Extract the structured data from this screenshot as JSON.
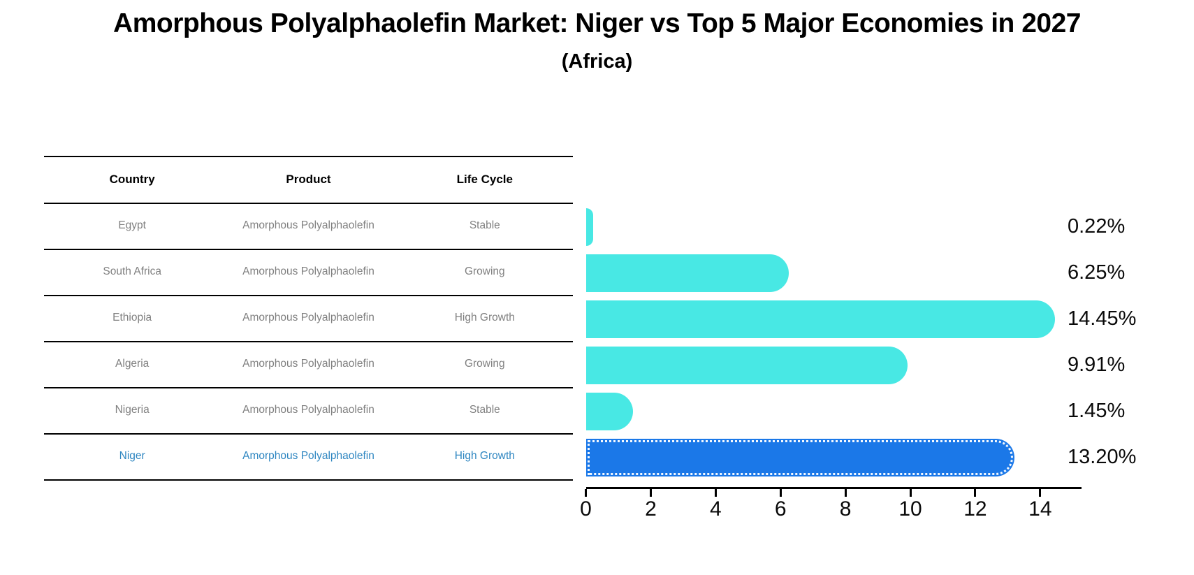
{
  "page": {
    "title": "Amorphous Polyalphaolefin Market: Niger vs Top 5 Major Economies in 2027",
    "subtitle": "(Africa)",
    "background_color": "#ffffff"
  },
  "table": {
    "headers": [
      "Country",
      "Product",
      "Life Cycle"
    ],
    "rows": [
      {
        "country": "Egypt",
        "product": "Amorphous Polyalphaolefin",
        "life_cycle": "Stable",
        "highlighted": false
      },
      {
        "country": "South Africa",
        "product": "Amorphous Polyalphaolefin",
        "life_cycle": "Growing",
        "highlighted": false
      },
      {
        "country": "Ethiopia",
        "product": "Amorphous Polyalphaolefin",
        "life_cycle": "High Growth",
        "highlighted": false
      },
      {
        "country": "Algeria",
        "product": "Amorphous Polyalphaolefin",
        "life_cycle": "Growing",
        "highlighted": false
      },
      {
        "country": "Nigeria",
        "product": "Amorphous Polyalphaolefin",
        "life_cycle": "Stable",
        "highlighted": false
      },
      {
        "country": "Niger",
        "product": "Amorphous Polyalphaolefin",
        "life_cycle": "High Growth",
        "highlighted": true
      }
    ],
    "header_text_color": "#000000",
    "body_text_color": "#808080",
    "highlight_text_color": "#2E86C1",
    "line_color": "#000000"
  },
  "chart_data": {
    "type": "bar",
    "orientation": "horizontal",
    "title": "Amorphous Polyalphaolefin Market: Niger vs Top 5 Major Economies in 2027",
    "subtitle": "(Africa)",
    "categories": [
      "Egypt",
      "South Africa",
      "Ethiopia",
      "Algeria",
      "Nigeria",
      "Niger"
    ],
    "values": [
      0.22,
      6.25,
      14.45,
      9.91,
      1.45,
      13.2
    ],
    "value_labels": [
      "0.22%",
      "6.25%",
      "14.45%",
      "9.91%",
      "1.45%",
      "13.20%"
    ],
    "unit": "%",
    "xlim": [
      0,
      15.23
    ],
    "xticks": [
      0,
      2,
      4,
      6,
      8,
      10,
      12,
      14
    ],
    "grid": false,
    "legend": false,
    "bar_color": "#48E8E4",
    "highlight_bar_color": "#1B78E8",
    "highlight_index": 5,
    "highlight_edge_style": "dotted-white"
  }
}
